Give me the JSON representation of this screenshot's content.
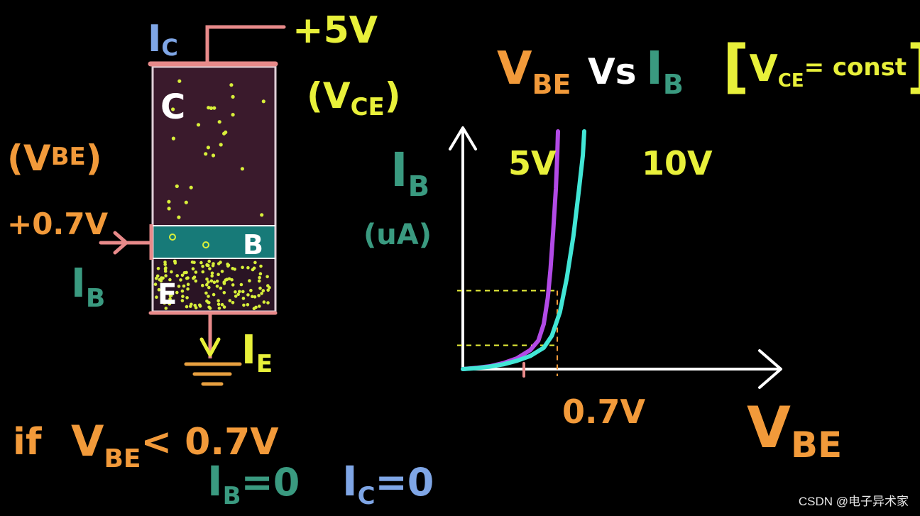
{
  "colors": {
    "background": "#000000",
    "orange": "#f29a3a",
    "yellow": "#e8f03a",
    "teal_text": "#3a9a80",
    "blue": "#7fa6e6",
    "pink": "#e88a8a",
    "collector": "#3a1a2c",
    "base": "#177a78",
    "emitter": "#2a1424",
    "dot": "#d8ef3a",
    "curve_5v": "#b24ae6",
    "curve_10v": "#42e6d6",
    "axis": "#ffffff",
    "white": "#ffffff"
  },
  "icons": [
    "ground-symbol-icon",
    "arrow-in-icon",
    "arrow-down-icon"
  ],
  "transistor": {
    "collector_label": "C",
    "base_label": "B",
    "emitter_label": "E",
    "ic_I": "I",
    "ic_sub": "C",
    "ie_I": "I",
    "ie_sub": "E",
    "ib_I": "I",
    "ib_sub": "B",
    "supply": "+5V",
    "vce_open": "(V",
    "vce_sub": "CE",
    "vce_close": ")",
    "vbe_open": "(V",
    "vbe_sub": "BE",
    "vbe_close": ")",
    "vbe_value": "+0.7V"
  },
  "graph_title": {
    "v": "V",
    "v_sub": "BE",
    "vs": "Vs",
    "i": "I",
    "i_sub": "B",
    "bracket_open": "[",
    "vce_v": "V",
    "vce_sub": "CE",
    "eq_const": "= const",
    "bracket_close": "]"
  },
  "condition": {
    "if_text": "if",
    "v": "V",
    "v_sub": "BE",
    "lt_value": "< 0.7V",
    "ib_I": "I",
    "ib_sub": "B",
    "ib_eq": "=0",
    "ic_I": "I",
    "ic_sub": "C",
    "ic_eq": "=0"
  },
  "watermark": "CSDN @电子异术家",
  "chart_data": {
    "type": "line",
    "x_tick_labels": [
      "0.7V"
    ],
    "xlabel_v": "V",
    "xlabel_sub": "BE",
    "ylabel_i": "I",
    "ylabel_sub": "B",
    "ylabel_unit": "(uA)",
    "series": [
      {
        "name": "5V",
        "color": "#b24ae6",
        "points": [
          [
            0,
            0
          ],
          [
            0.1,
            0.005
          ],
          [
            0.2,
            0.012
          ],
          [
            0.3,
            0.025
          ],
          [
            0.4,
            0.045
          ],
          [
            0.5,
            0.08
          ],
          [
            0.56,
            0.12
          ],
          [
            0.6,
            0.19
          ],
          [
            0.63,
            0.3
          ],
          [
            0.65,
            0.42
          ],
          [
            0.67,
            0.58
          ],
          [
            0.69,
            0.76
          ],
          [
            0.7,
            0.9
          ],
          [
            0.705,
            1.0
          ]
        ]
      },
      {
        "name": "10V",
        "color": "#42e6d6",
        "points": [
          [
            0,
            0
          ],
          [
            0.1,
            0.004
          ],
          [
            0.2,
            0.01
          ],
          [
            0.3,
            0.02
          ],
          [
            0.4,
            0.035
          ],
          [
            0.5,
            0.055
          ],
          [
            0.6,
            0.09
          ],
          [
            0.66,
            0.14
          ],
          [
            0.72,
            0.24
          ],
          [
            0.77,
            0.38
          ],
          [
            0.82,
            0.56
          ],
          [
            0.86,
            0.75
          ],
          [
            0.89,
            0.9
          ],
          [
            0.9,
            1.0
          ]
        ]
      }
    ],
    "dashed_levels": [
      0.33,
      0.1
    ],
    "dashed_x": 0.7,
    "grid": false
  }
}
